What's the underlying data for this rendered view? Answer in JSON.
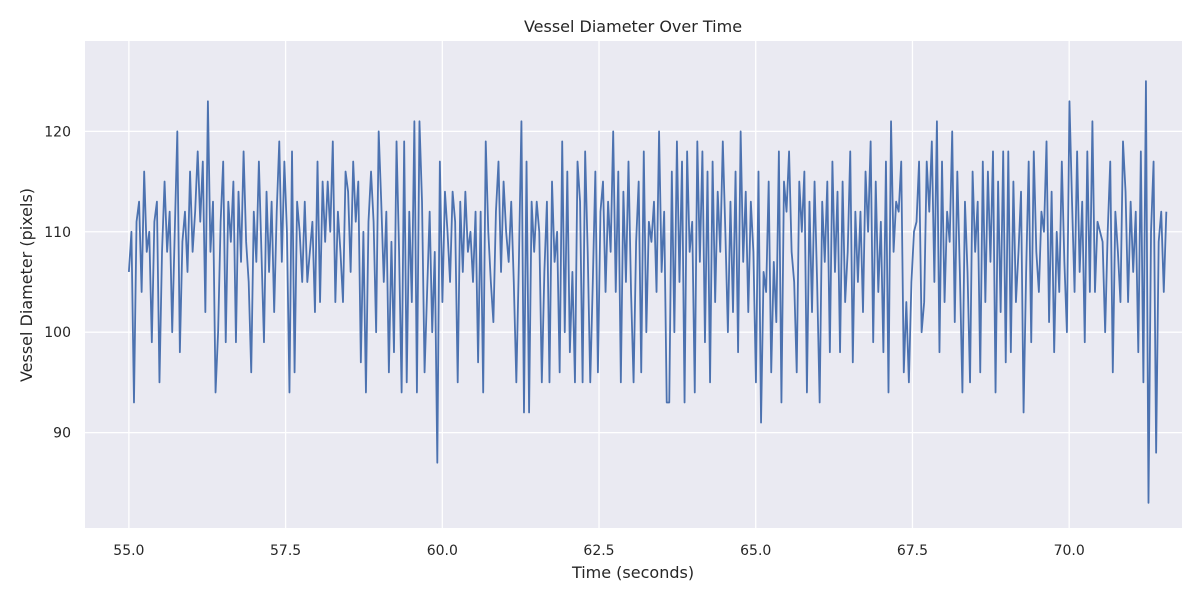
{
  "chart_data": {
    "type": "line",
    "title": "Vessel Diameter Over Time",
    "xlabel": "Time (seconds)",
    "ylabel": "Vessel Diameter (pixels)",
    "xlim": [
      54.3,
      71.8
    ],
    "ylim": [
      80.5,
      129
    ],
    "xticks": [
      55.0,
      57.5,
      60.0,
      62.5,
      65.0,
      67.5,
      70.0
    ],
    "xtick_labels": [
      "55.0",
      "57.5",
      "60.0",
      "62.5",
      "65.0",
      "67.5",
      "70.0"
    ],
    "yticks": [
      90,
      100,
      110,
      120
    ],
    "ytick_labels": [
      "90",
      "100",
      "110",
      "120"
    ],
    "grid": true,
    "colors": {
      "background": "#eaeaf2",
      "grid": "#ffffff",
      "line": "#4c72b0"
    },
    "series": [
      {
        "x_start": 55.0,
        "x_end": 71.55,
        "values": [
          106,
          110,
          93,
          111,
          113,
          104,
          116,
          108,
          110,
          99,
          111,
          113,
          95,
          108,
          115,
          108,
          112,
          100,
          110,
          120,
          98,
          109,
          112,
          106,
          116,
          108,
          112,
          118,
          111,
          117,
          102,
          123,
          108,
          113,
          94,
          100,
          111,
          117,
          99,
          113,
          109,
          115,
          99,
          114,
          107,
          118,
          109,
          105,
          96,
          112,
          107,
          117,
          108,
          99,
          114,
          106,
          113,
          102,
          112,
          119,
          107,
          117,
          110,
          94,
          118,
          96,
          113,
          110,
          105,
          113,
          105,
          108,
          111,
          102,
          117,
          103,
          115,
          109,
          115,
          110,
          119,
          103,
          112,
          108,
          103,
          116,
          114,
          106,
          117,
          111,
          115,
          97,
          110,
          94,
          111,
          116,
          111,
          100,
          120,
          113,
          105,
          112,
          96,
          109,
          98,
          119,
          108,
          94,
          119,
          95,
          112,
          103,
          121,
          94,
          121,
          113,
          96,
          104,
          112,
          100,
          108,
          87,
          117,
          103,
          114,
          110,
          105,
          114,
          111,
          95,
          113,
          106,
          114,
          108,
          110,
          105,
          112,
          97,
          112,
          94,
          119,
          110,
          105,
          101,
          112,
          117,
          106,
          115,
          110,
          107,
          113,
          105,
          95,
          107,
          121,
          92,
          117,
          92,
          113,
          108,
          113,
          110,
          95,
          106,
          113,
          95,
          115,
          107,
          110,
          96,
          119,
          100,
          116,
          98,
          106,
          95,
          117,
          113,
          95,
          118,
          108,
          95,
          105,
          116,
          96,
          112,
          115,
          104,
          113,
          108,
          120,
          104,
          116,
          95,
          114,
          105,
          117,
          104,
          95,
          109,
          115,
          96,
          118,
          100,
          111,
          109,
          113,
          104,
          120,
          106,
          112,
          93,
          93,
          116,
          100,
          119,
          105,
          117,
          93,
          118,
          108,
          111,
          94,
          119,
          107,
          118,
          99,
          116,
          95,
          117,
          103,
          114,
          108,
          119,
          110,
          100,
          113,
          102,
          116,
          98,
          120,
          107,
          114,
          102,
          113,
          108,
          95,
          116,
          91,
          106,
          104,
          115,
          96,
          107,
          101,
          118,
          93,
          115,
          112,
          118,
          108,
          105,
          96,
          115,
          110,
          116,
          94,
          113,
          102,
          115,
          105,
          93,
          113,
          107,
          115,
          98,
          117,
          106,
          114,
          98,
          115,
          103,
          108,
          118,
          97,
          112,
          105,
          112,
          102,
          116,
          110,
          119,
          99,
          115,
          104,
          111,
          98,
          117,
          94,
          121,
          108,
          113,
          112,
          117,
          96,
          103,
          95,
          105,
          110,
          111,
          117,
          100,
          103,
          117,
          112,
          119,
          105,
          121,
          98,
          117,
          103,
          112,
          109,
          120,
          101,
          116,
          106,
          94,
          113,
          106,
          95,
          116,
          108,
          113,
          96,
          117,
          103,
          116,
          107,
          118,
          94,
          115,
          102,
          118,
          97,
          118,
          98,
          115,
          103,
          108,
          114,
          92,
          106,
          117,
          99,
          118,
          108,
          104,
          112,
          110,
          119,
          101,
          114,
          98,
          110,
          104,
          117,
          107,
          100,
          123,
          113,
          104,
          118,
          106,
          113,
          99,
          118,
          104,
          121,
          104,
          111,
          110,
          109,
          100,
          110,
          117,
          96,
          112,
          108,
          103,
          119,
          114,
          103,
          113,
          106,
          112,
          98,
          118,
          95,
          125,
          83,
          110,
          117,
          88,
          109,
          112,
          104,
          112
        ]
      }
    ]
  }
}
